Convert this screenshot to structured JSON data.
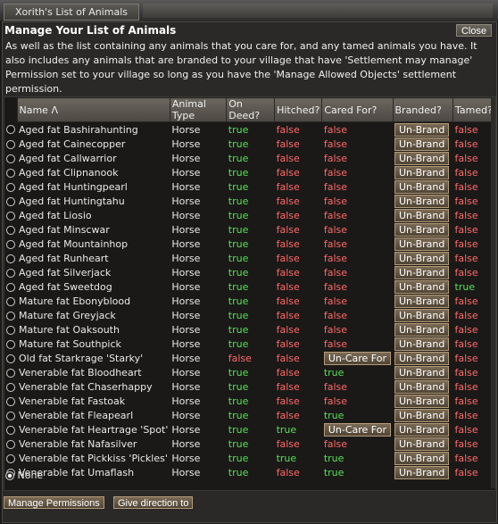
{
  "window": {
    "title": "Xorith's List of Animals",
    "close_label": "Close"
  },
  "heading": "Manage Your List of Animals",
  "intro": "As well as the list containing any animals that you care for, and any tamed animals you have. It also includes any animals that are branded to your village that have 'Settlement may manage' Permission set to your village so long as you have the 'Manage Allowed Objects' settlement permission.",
  "columns": [
    "Name Λ",
    "Animal Type",
    "On Deed?",
    "Hitched?",
    "Cared For?",
    "Branded?",
    "Tamed?"
  ],
  "rows": [
    {
      "name": "Aged fat Bashirahunting",
      "type": "Horse",
      "deed": "true",
      "hitched": "false",
      "cared": "false",
      "branded": "Un-Brand",
      "tamed": "false"
    },
    {
      "name": "Aged fat Cainecopper",
      "type": "Horse",
      "deed": "true",
      "hitched": "false",
      "cared": "false",
      "branded": "Un-Brand",
      "tamed": "false"
    },
    {
      "name": "Aged fat Callwarrior",
      "type": "Horse",
      "deed": "true",
      "hitched": "false",
      "cared": "false",
      "branded": "Un-Brand",
      "tamed": "false"
    },
    {
      "name": "Aged fat Clipnanook",
      "type": "Horse",
      "deed": "true",
      "hitched": "false",
      "cared": "false",
      "branded": "Un-Brand",
      "tamed": "false"
    },
    {
      "name": "Aged fat Huntingpearl",
      "type": "Horse",
      "deed": "true",
      "hitched": "false",
      "cared": "false",
      "branded": "Un-Brand",
      "tamed": "false"
    },
    {
      "name": "Aged fat Huntingtahu",
      "type": "Horse",
      "deed": "true",
      "hitched": "false",
      "cared": "false",
      "branded": "Un-Brand",
      "tamed": "false"
    },
    {
      "name": "Aged fat Liosio",
      "type": "Horse",
      "deed": "true",
      "hitched": "false",
      "cared": "false",
      "branded": "Un-Brand",
      "tamed": "false"
    },
    {
      "name": "Aged fat Minscwar",
      "type": "Horse",
      "deed": "true",
      "hitched": "false",
      "cared": "false",
      "branded": "Un-Brand",
      "tamed": "false"
    },
    {
      "name": "Aged fat Mountainhop",
      "type": "Horse",
      "deed": "true",
      "hitched": "false",
      "cared": "false",
      "branded": "Un-Brand",
      "tamed": "false"
    },
    {
      "name": "Aged fat Runheart",
      "type": "Horse",
      "deed": "true",
      "hitched": "false",
      "cared": "false",
      "branded": "Un-Brand",
      "tamed": "false"
    },
    {
      "name": "Aged fat Silverjack",
      "type": "Horse",
      "deed": "true",
      "hitched": "false",
      "cared": "false",
      "branded": "Un-Brand",
      "tamed": "false"
    },
    {
      "name": "Aged fat Sweetdog",
      "type": "Horse",
      "deed": "true",
      "hitched": "false",
      "cared": "false",
      "branded": "Un-Brand",
      "tamed": "true"
    },
    {
      "name": "Mature fat Ebonyblood",
      "type": "Horse",
      "deed": "true",
      "hitched": "false",
      "cared": "false",
      "branded": "Un-Brand",
      "tamed": "false"
    },
    {
      "name": "Mature fat Greyjack",
      "type": "Horse",
      "deed": "true",
      "hitched": "false",
      "cared": "false",
      "branded": "Un-Brand",
      "tamed": "false"
    },
    {
      "name": "Mature fat Oaksouth",
      "type": "Horse",
      "deed": "true",
      "hitched": "false",
      "cared": "false",
      "branded": "Un-Brand",
      "tamed": "false"
    },
    {
      "name": "Mature fat Southpick",
      "type": "Horse",
      "deed": "true",
      "hitched": "false",
      "cared": "false",
      "branded": "Un-Brand",
      "tamed": "false"
    },
    {
      "name": "Old fat Starkrage 'Starky'",
      "type": "Horse",
      "deed": "false",
      "hitched": "false",
      "cared": "Un-Care For",
      "branded": "Un-Brand",
      "tamed": "false"
    },
    {
      "name": "Venerable fat Bloodheart",
      "type": "Horse",
      "deed": "true",
      "hitched": "false",
      "cared": "true",
      "branded": "Un-Brand",
      "tamed": "false"
    },
    {
      "name": "Venerable fat Chaserhappy",
      "type": "Horse",
      "deed": "true",
      "hitched": "false",
      "cared": "false",
      "branded": "Un-Brand",
      "tamed": "false"
    },
    {
      "name": "Venerable fat Fastoak",
      "type": "Horse",
      "deed": "true",
      "hitched": "false",
      "cared": "false",
      "branded": "Un-Brand",
      "tamed": "false"
    },
    {
      "name": "Venerable fat Fleapearl",
      "type": "Horse",
      "deed": "true",
      "hitched": "false",
      "cared": "true",
      "branded": "Un-Brand",
      "tamed": "false"
    },
    {
      "name": "Venerable fat Heartrage 'Spot'",
      "type": "Horse",
      "deed": "true",
      "hitched": "true",
      "cared": "Un-Care For",
      "branded": "Un-Brand",
      "tamed": "false"
    },
    {
      "name": "Venerable fat Nafasilver",
      "type": "Horse",
      "deed": "true",
      "hitched": "false",
      "cared": "false",
      "branded": "Un-Brand",
      "tamed": "false"
    },
    {
      "name": "Venerable fat Pickkiss 'Pickles'",
      "type": "Horse",
      "deed": "true",
      "hitched": "true",
      "cared": "true",
      "branded": "Un-Brand",
      "tamed": "false"
    },
    {
      "name": "Venerable fat Umaflash",
      "type": "Horse",
      "deed": "true",
      "hitched": "false",
      "cared": "true",
      "branded": "Un-Brand",
      "tamed": "false"
    }
  ],
  "none_label": "None",
  "buttons": {
    "manage_permissions": "Manage Permissions",
    "give_direction": "Give direction to"
  },
  "colors": {
    "true": "#58e058",
    "false": "#ff6a6a",
    "button": "#7a6a55"
  }
}
